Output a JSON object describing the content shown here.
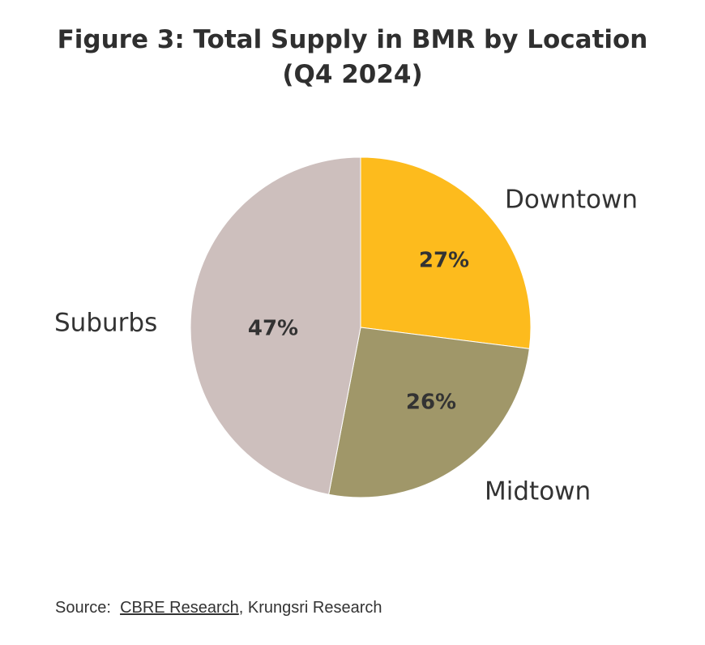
{
  "title": {
    "line1": "Figure 3: Total Supply in BMR by Location",
    "line2": "(Q4 2024)"
  },
  "chart_data": {
    "type": "pie",
    "slices": [
      {
        "label": "Downtown",
        "value": 27,
        "value_label": "27%",
        "color": "#fdbb1d"
      },
      {
        "label": "Midtown",
        "value": 26,
        "value_label": "26%",
        "color": "#a09769"
      },
      {
        "label": "Suburbs",
        "value": 47,
        "value_label": "47%",
        "color": "#cdbfbd"
      }
    ],
    "unit": "%",
    "start_angle": "12 o'clock",
    "direction": "clockwise",
    "legend": "none (labels outside slices)"
  },
  "source": {
    "prefix": "Source:",
    "link_text": "CBRE Research",
    "suffix": ", Krungsri Research"
  }
}
